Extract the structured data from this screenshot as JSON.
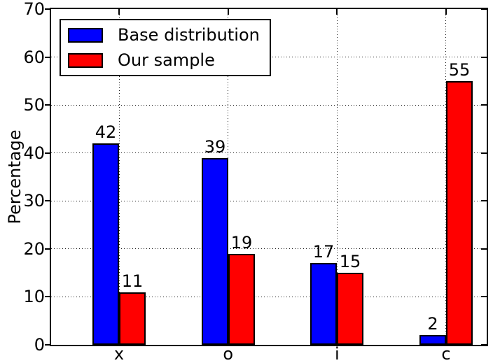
{
  "chart_data": {
    "type": "bar",
    "categories": [
      "x",
      "o",
      "i",
      "c"
    ],
    "series": [
      {
        "name": "Base distribution",
        "color": "#0000ff",
        "values": [
          42,
          39,
          17,
          2
        ]
      },
      {
        "name": "Our sample",
        "color": "#ff0000",
        "values": [
          11,
          19,
          15,
          55
        ]
      }
    ],
    "title": "",
    "xlabel": "",
    "ylabel": "Percentage",
    "ylim": [
      0,
      70
    ],
    "yticks": [
      0,
      10,
      20,
      30,
      40,
      50,
      60,
      70
    ],
    "grid": "dotted black, horizontal at each ytick and vertical at each category",
    "legend_position": "upper left",
    "bar_value_labels": true,
    "bar_edge_color": "#000000",
    "background_color": "#ffffff"
  }
}
